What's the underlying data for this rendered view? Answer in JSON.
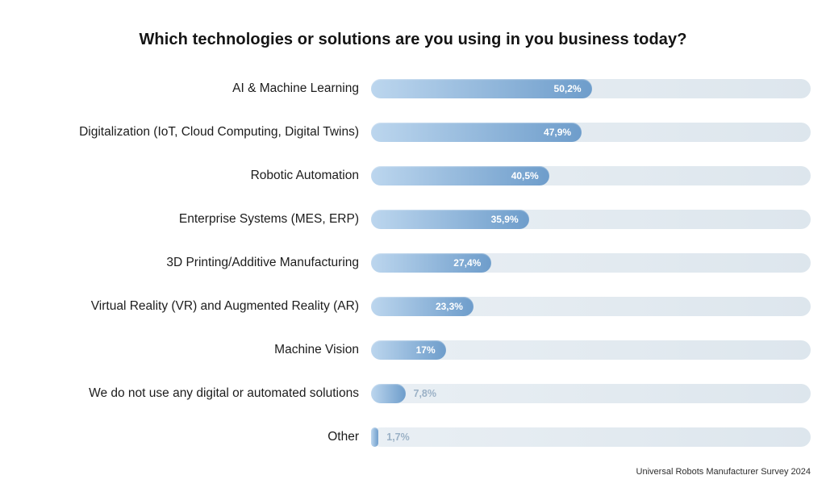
{
  "title": "Which technologies or solutions are you using in you business today?",
  "source": "Universal Robots Manufacturer Survey 2024",
  "chart_data": {
    "type": "bar",
    "orientation": "horizontal",
    "title": "Which technologies or solutions are you using in you business today?",
    "categories": [
      "AI & Machine Learning",
      "Digitalization (IoT, Cloud Computing, Digital Twins)",
      "Robotic Automation",
      "Enterprise Systems (MES, ERP)",
      "3D Printing/Additive Manufacturing",
      "Virtual Reality (VR) and Augmented Reality (AR)",
      "Machine Vision",
      "We do not use any digital or automated solutions",
      "Other"
    ],
    "values": [
      50.2,
      47.9,
      40.5,
      35.9,
      27.4,
      23.3,
      17,
      7.8,
      1.7
    ],
    "value_labels": [
      "50,2%",
      "47,9%",
      "40,5%",
      "35,9%",
      "27,4%",
      "23,3%",
      "17%",
      "7,8%",
      "1,7%"
    ],
    "label_position": [
      "inside",
      "inside",
      "inside",
      "inside",
      "inside",
      "inside",
      "inside",
      "outside",
      "outside"
    ],
    "xlim": [
      0,
      100
    ],
    "grid": false,
    "legend": false,
    "annotation": "Universal Robots Manufacturer Survey 2024",
    "colors": {
      "bar_gradient_start": "#bcd6ee",
      "bar_gradient_end": "#6e9dcb",
      "track": "#e2eaf0",
      "value_inside_text": "#ffffff",
      "value_outside_text": "#9bb1c6",
      "category_text": "#1c1c1c",
      "title_text": "#141414",
      "background": "#ffffff"
    }
  }
}
